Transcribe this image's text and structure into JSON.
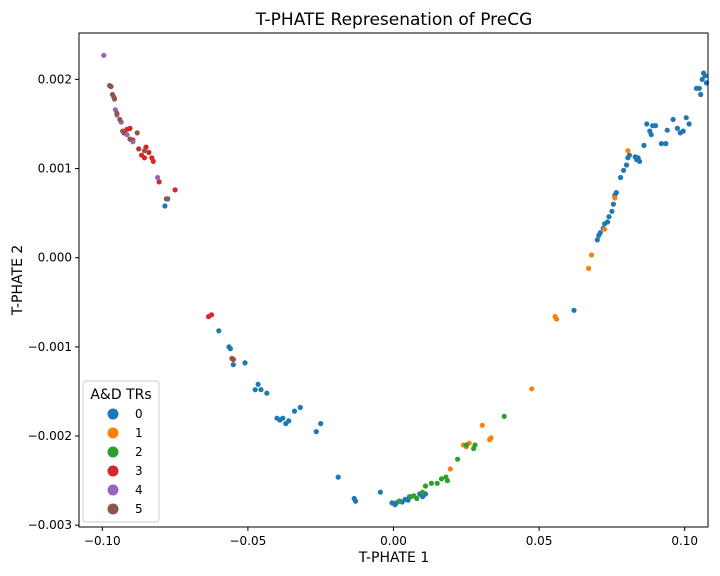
{
  "chart_data": {
    "type": "scatter",
    "title": "T-PHATE Represenation of PreCG",
    "xlabel": "T-PHATE 1",
    "ylabel": "T-PHATE 2",
    "xlim": [
      -0.108,
      0.108
    ],
    "ylim": [
      -0.00302,
      0.00252
    ],
    "xticks": [
      -0.1,
      -0.05,
      0.0,
      0.05,
      0.1
    ],
    "xtick_labels": [
      "−0.10",
      "−0.05",
      "0.00",
      "0.05",
      "0.10"
    ],
    "yticks": [
      -0.003,
      -0.002,
      -0.001,
      0.0,
      0.001,
      0.002
    ],
    "ytick_labels": [
      "−0.003",
      "−0.002",
      "−0.001",
      "0.000",
      "0.001",
      "0.002"
    ],
    "grid": false,
    "legend": {
      "title": "A&D TRs",
      "placement": "lower-left",
      "entries": [
        "0",
        "1",
        "2",
        "3",
        "4",
        "5"
      ],
      "colors": [
        "#1f77b4",
        "#ff7f0e",
        "#2ca02c",
        "#d62728",
        "#9467bd",
        "#8c564b"
      ]
    },
    "series": [
      {
        "name": "0",
        "color": "#1f77b4",
        "points": [
          [
            -0.0785,
            0.00058
          ],
          [
            -0.0775,
            0.00066
          ],
          [
            -0.06,
            -0.00082
          ],
          [
            -0.0565,
            -0.001
          ],
          [
            -0.056,
            -0.00102
          ],
          [
            -0.055,
            -0.0012
          ],
          [
            -0.051,
            -0.00118
          ],
          [
            -0.0475,
            -0.00148
          ],
          [
            -0.0465,
            -0.00142
          ],
          [
            -0.0455,
            -0.00148
          ],
          [
            -0.0435,
            -0.00152
          ],
          [
            -0.04,
            -0.0018
          ],
          [
            -0.039,
            -0.00182
          ],
          [
            -0.038,
            -0.0018
          ],
          [
            -0.037,
            -0.00186
          ],
          [
            -0.036,
            -0.00183
          ],
          [
            -0.034,
            -0.00172
          ],
          [
            -0.032,
            -0.00168
          ],
          [
            -0.0265,
            -0.00195
          ],
          [
            -0.025,
            -0.00186
          ],
          [
            -0.019,
            -0.00246
          ],
          [
            -0.0135,
            -0.0027
          ],
          [
            -0.013,
            -0.00273
          ],
          [
            -0.0045,
            -0.00263
          ],
          [
            -0.0005,
            -0.00275
          ],
          [
            0.0005,
            -0.00277
          ],
          [
            0.001,
            -0.00275
          ],
          [
            0.002,
            -0.00273
          ],
          [
            0.003,
            -0.00274
          ],
          [
            0.004,
            -0.00271
          ],
          [
            0.005,
            -0.00272
          ],
          [
            0.0055,
            -0.00268
          ],
          [
            0.009,
            -0.00265
          ],
          [
            0.01,
            -0.00268
          ],
          [
            0.011,
            -0.00265
          ],
          [
            0.062,
            -0.00059
          ],
          [
            0.07,
            0.0002
          ],
          [
            0.0705,
            0.00025
          ],
          [
            0.071,
            0.00028
          ],
          [
            0.072,
            0.00033
          ],
          [
            0.0725,
            0.00038
          ],
          [
            0.0735,
            0.0004
          ],
          [
            0.074,
            0.00046
          ],
          [
            0.075,
            0.00052
          ],
          [
            0.0755,
            0.0006
          ],
          [
            0.076,
            0.0007
          ],
          [
            0.0765,
            0.00073
          ],
          [
            0.078,
            0.0009
          ],
          [
            0.079,
            0.00098
          ],
          [
            0.08,
            0.00104
          ],
          [
            0.0805,
            0.00112
          ],
          [
            0.081,
            0.00115
          ],
          [
            0.083,
            0.00113
          ],
          [
            0.0835,
            0.0011
          ],
          [
            0.084,
            0.00112
          ],
          [
            0.0845,
            0.00108
          ],
          [
            0.086,
            0.00126
          ],
          [
            0.087,
            0.0015
          ],
          [
            0.088,
            0.00142
          ],
          [
            0.0885,
            0.00138
          ],
          [
            0.089,
            0.00148
          ],
          [
            0.09,
            0.00148
          ],
          [
            0.092,
            0.00128
          ],
          [
            0.0935,
            0.00128
          ],
          [
            0.094,
            0.00143
          ],
          [
            0.096,
            0.00155
          ],
          [
            0.0975,
            0.00145
          ],
          [
            0.0985,
            0.0014
          ],
          [
            0.0995,
            0.00142
          ],
          [
            0.1005,
            0.00157
          ],
          [
            0.1015,
            0.0015
          ],
          [
            0.104,
            0.0019
          ],
          [
            0.105,
            0.0019
          ],
          [
            0.1055,
            0.00183
          ],
          [
            0.106,
            0.002
          ],
          [
            0.1065,
            0.00207
          ],
          [
            0.107,
            0.00204
          ],
          [
            0.1075,
            0.00196
          ]
        ]
      },
      {
        "name": "1",
        "color": "#ff7f0e",
        "points": [
          [
            0.0195,
            -0.00237
          ],
          [
            0.024,
            -0.0021
          ],
          [
            0.025,
            -0.00212
          ],
          [
            0.026,
            -0.00208
          ],
          [
            0.0305,
            -0.00188
          ],
          [
            0.033,
            -0.00204
          ],
          [
            0.0335,
            -0.00202
          ],
          [
            0.0475,
            -0.00147
          ],
          [
            0.0555,
            -0.00066
          ],
          [
            0.056,
            -0.00069
          ],
          [
            0.067,
            -0.00012
          ],
          [
            0.068,
            3e-05
          ],
          [
            0.0725,
            0.00032
          ],
          [
            0.076,
            0.00067
          ],
          [
            0.0805,
            0.0012
          ]
        ]
      },
      {
        "name": "2",
        "color": "#2ca02c",
        "points": [
          [
            0.002,
            -0.00273
          ],
          [
            0.006,
            -0.00268
          ],
          [
            0.007,
            -0.00267
          ],
          [
            0.008,
            -0.0027
          ],
          [
            0.01,
            -0.00263
          ],
          [
            0.011,
            -0.00256
          ],
          [
            0.013,
            -0.00253
          ],
          [
            0.015,
            -0.00253
          ],
          [
            0.0165,
            -0.00248
          ],
          [
            0.018,
            -0.00246
          ],
          [
            0.0185,
            -0.0025
          ],
          [
            0.022,
            -0.00226
          ],
          [
            0.025,
            -0.0021
          ],
          [
            0.0275,
            -0.00214
          ],
          [
            0.028,
            -0.0021
          ],
          [
            0.038,
            -0.00178
          ]
        ]
      },
      {
        "name": "3",
        "color": "#d62728",
        "points": [
          [
            -0.0925,
            0.0014
          ],
          [
            -0.0915,
            0.00144
          ],
          [
            -0.0905,
            0.00145
          ],
          [
            -0.0895,
            0.00132
          ],
          [
            -0.0875,
            0.00122
          ],
          [
            -0.0865,
            0.00115
          ],
          [
            -0.0855,
            0.00112
          ],
          [
            -0.085,
            0.00124
          ],
          [
            -0.084,
            0.00118
          ],
          [
            -0.083,
            0.00112
          ],
          [
            -0.0825,
            0.00108
          ],
          [
            -0.0805,
            0.00085
          ],
          [
            -0.075,
            0.00076
          ],
          [
            -0.0635,
            -0.00066
          ],
          [
            -0.0625,
            -0.00064
          ],
          [
            -0.055,
            -0.00114
          ]
        ]
      },
      {
        "name": "4",
        "color": "#9467bd",
        "points": [
          [
            -0.0995,
            0.00227
          ],
          [
            -0.0955,
            0.00166
          ],
          [
            -0.095,
            0.0016
          ],
          [
            -0.0935,
            0.00152
          ],
          [
            -0.0915,
            0.00138
          ],
          [
            -0.0895,
            0.0013
          ],
          [
            -0.081,
            0.0009
          ]
        ]
      },
      {
        "name": "5",
        "color": "#8c564b",
        "points": [
          [
            -0.0975,
            0.00193
          ],
          [
            -0.097,
            0.00192
          ],
          [
            -0.0965,
            0.00183
          ],
          [
            -0.096,
            0.0018
          ],
          [
            -0.0958,
            0.00178
          ],
          [
            -0.095,
            0.00162
          ],
          [
            -0.094,
            0.00155
          ],
          [
            -0.093,
            0.00142
          ],
          [
            -0.0905,
            0.00133
          ],
          [
            -0.088,
            0.0014
          ],
          [
            -0.0855,
            0.0012
          ],
          [
            -0.078,
            0.00066
          ],
          [
            -0.0555,
            -0.00113
          ]
        ]
      }
    ]
  }
}
